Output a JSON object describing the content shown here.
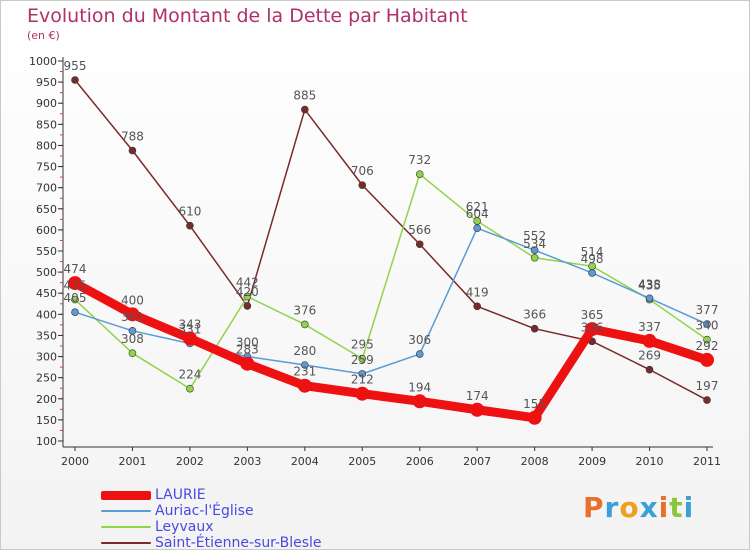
{
  "header": {
    "title": "Evolution du Montant de la Dette par Habitant",
    "subtitle": "(en €)"
  },
  "logo": {
    "letters": [
      "P",
      "r",
      "o",
      "x",
      "i",
      "t",
      "i"
    ],
    "colors": [
      "#e8702a",
      "#3aa0d8",
      "#f0a020",
      "#3aa0d8",
      "#e8702a",
      "#8cc63f",
      "#3aa0d8"
    ]
  },
  "chart_data": {
    "type": "line",
    "x": [
      "2000",
      "2001",
      "2002",
      "2003",
      "2004",
      "2005",
      "2006",
      "2007",
      "2008",
      "2009",
      "2010",
      "2011"
    ],
    "ylim": [
      100,
      1000
    ],
    "yticks": [
      100,
      150,
      200,
      250,
      300,
      350,
      400,
      450,
      500,
      550,
      600,
      650,
      700,
      750,
      800,
      850,
      900,
      950,
      1000
    ],
    "grid": false,
    "legend_position": "bottom-left",
    "series": [
      {
        "name": "Saint-Étienne-sur-Blesle",
        "color": "#7a2a2a",
        "values": [
          955,
          788,
          610,
          420,
          885,
          706,
          566,
          419,
          366,
          336,
          269,
          197
        ]
      },
      {
        "name": "Leyvaux",
        "color": "#8fd44a",
        "values": [
          435,
          308,
          224,
          442,
          376,
          295,
          732,
          621,
          534,
          514,
          435,
          340
        ]
      },
      {
        "name": "Auriac-l'Église",
        "color": "#5b9bd5",
        "values": [
          405,
          361,
          331,
          300,
          280,
          259,
          306,
          604,
          552,
          498,
          438,
          377
        ]
      },
      {
        "name": "LAURIE",
        "color": "#ee1111",
        "values": [
          474,
          400,
          343,
          283,
          231,
          212,
          194,
          174,
          155,
          365,
          337,
          292
        ]
      }
    ]
  }
}
